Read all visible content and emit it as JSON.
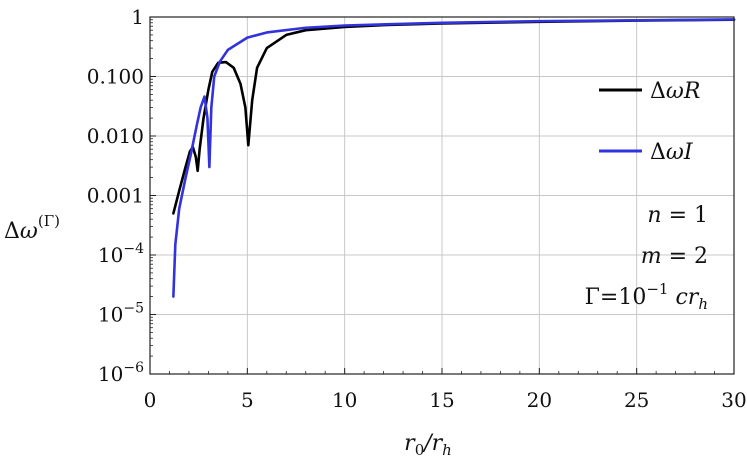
{
  "chart_data": {
    "type": "line",
    "xlabel": "r0/rh",
    "ylabel": "Δω(Γ)",
    "xlim": [
      0,
      30
    ],
    "ylim_log10": [
      -6,
      0
    ],
    "y_scale": "log",
    "grid": true,
    "legend_position": "right",
    "x_ticks": [
      0,
      5,
      10,
      15,
      20,
      25,
      30
    ],
    "y_tick_labels": [
      "1",
      "0.100",
      "0.010",
      "0.001",
      "10−4",
      "10−5",
      "10−6"
    ],
    "series": [
      {
        "name": "ΔωR",
        "color": "#000000",
        "points": [
          [
            1.2,
            0.0005
          ],
          [
            1.5,
            0.0012
          ],
          [
            1.8,
            0.0028
          ],
          [
            2.05,
            0.0055
          ],
          [
            2.2,
            0.0065
          ],
          [
            2.35,
            0.0045
          ],
          [
            2.45,
            0.0026
          ],
          [
            2.55,
            0.006
          ],
          [
            2.75,
            0.02
          ],
          [
            3.0,
            0.06
          ],
          [
            3.2,
            0.12
          ],
          [
            3.5,
            0.17
          ],
          [
            3.9,
            0.175
          ],
          [
            4.3,
            0.14
          ],
          [
            4.65,
            0.075
          ],
          [
            4.9,
            0.03
          ],
          [
            5.05,
            0.007
          ],
          [
            5.25,
            0.04
          ],
          [
            5.5,
            0.14
          ],
          [
            6.0,
            0.3
          ],
          [
            7.0,
            0.5
          ],
          [
            8.0,
            0.6
          ],
          [
            10.0,
            0.68
          ],
          [
            12.0,
            0.73
          ],
          [
            15.0,
            0.78
          ],
          [
            20.0,
            0.83
          ],
          [
            25.0,
            0.87
          ],
          [
            30.0,
            0.9
          ]
        ]
      },
      {
        "name": "ΔωI",
        "color": "#3333dd",
        "points": [
          [
            1.2,
            2e-05
          ],
          [
            1.3,
            0.00015
          ],
          [
            1.5,
            0.0006
          ],
          [
            1.8,
            0.0018
          ],
          [
            2.1,
            0.005
          ],
          [
            2.4,
            0.015
          ],
          [
            2.6,
            0.03
          ],
          [
            2.8,
            0.046
          ],
          [
            2.95,
            0.02
          ],
          [
            3.05,
            0.003
          ],
          [
            3.15,
            0.03
          ],
          [
            3.3,
            0.1
          ],
          [
            3.6,
            0.18
          ],
          [
            4.0,
            0.28
          ],
          [
            5.0,
            0.45
          ],
          [
            6.0,
            0.55
          ],
          [
            8.0,
            0.66
          ],
          [
            10.0,
            0.72
          ],
          [
            15.0,
            0.8
          ],
          [
            20.0,
            0.85
          ],
          [
            25.0,
            0.88
          ],
          [
            30.0,
            0.91
          ]
        ]
      }
    ],
    "annotations": [
      "n = 1",
      "m = 2",
      "Γ=10−1 crh"
    ]
  }
}
